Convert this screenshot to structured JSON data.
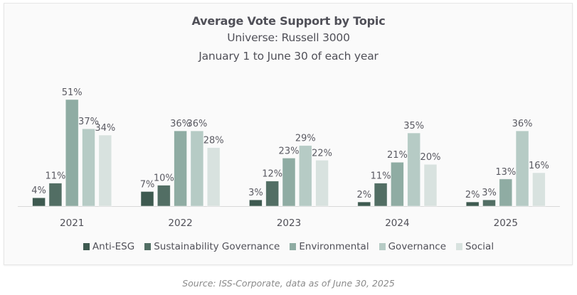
{
  "chart_data": {
    "type": "bar",
    "title": "Average Vote Support by Topic",
    "subtitle_lines": [
      "Universe: Russell 3000",
      "January 1 to June 30 of each year"
    ],
    "xlabel": "",
    "ylabel": "",
    "categories": [
      "2021",
      "2022",
      "2023",
      "2024",
      "2025"
    ],
    "ylim": [
      0,
      60
    ],
    "grid": false,
    "legend_position": "bottom",
    "value_suffix": "%",
    "series": [
      {
        "name": "Anti-ESG",
        "color": "#3e5a50",
        "values": [
          4,
          7,
          3,
          2,
          2
        ]
      },
      {
        "name": "Sustainability Governance",
        "color": "#526e64",
        "values": [
          11,
          10,
          12,
          11,
          3
        ]
      },
      {
        "name": "Environmental",
        "color": "#8faca3",
        "values": [
          51,
          36,
          23,
          21,
          13
        ]
      },
      {
        "name": "Governance",
        "color": "#b6cbc5",
        "values": [
          37,
          36,
          29,
          35,
          36
        ]
      },
      {
        "name": "Social",
        "color": "#d8e2df",
        "values": [
          34,
          28,
          22,
          20,
          16
        ]
      }
    ],
    "source": "Source: ISS-Corporate, data as of June 30, 2025"
  }
}
